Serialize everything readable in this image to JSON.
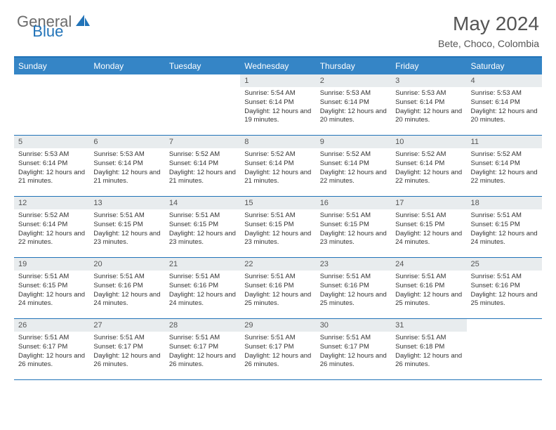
{
  "logo": {
    "general": "General",
    "blue": "Blue"
  },
  "title": {
    "month_year": "May 2024",
    "location": "Bete, Choco, Colombia"
  },
  "styling": {
    "header_bg": "#3585c6",
    "accent_border": "#2173b8",
    "daynum_bg": "#e8ecee",
    "text_color": "#555555",
    "body_text": "#333333",
    "logo_gray": "#6b6b6b",
    "logo_blue": "#2173b8",
    "month_fontsize": 28,
    "location_fontsize": 14,
    "weekday_fontsize": 12,
    "daynum_fontsize": 11,
    "content_fontsize": 9.5
  },
  "weekdays": [
    "Sunday",
    "Monday",
    "Tuesday",
    "Wednesday",
    "Thursday",
    "Friday",
    "Saturday"
  ],
  "weeks": [
    [
      {
        "n": "",
        "sr": "",
        "ss": "",
        "dl": ""
      },
      {
        "n": "",
        "sr": "",
        "ss": "",
        "dl": ""
      },
      {
        "n": "",
        "sr": "",
        "ss": "",
        "dl": ""
      },
      {
        "n": "1",
        "sr": "Sunrise: 5:54 AM",
        "ss": "Sunset: 6:14 PM",
        "dl": "Daylight: 12 hours and 19 minutes."
      },
      {
        "n": "2",
        "sr": "Sunrise: 5:53 AM",
        "ss": "Sunset: 6:14 PM",
        "dl": "Daylight: 12 hours and 20 minutes."
      },
      {
        "n": "3",
        "sr": "Sunrise: 5:53 AM",
        "ss": "Sunset: 6:14 PM",
        "dl": "Daylight: 12 hours and 20 minutes."
      },
      {
        "n": "4",
        "sr": "Sunrise: 5:53 AM",
        "ss": "Sunset: 6:14 PM",
        "dl": "Daylight: 12 hours and 20 minutes."
      }
    ],
    [
      {
        "n": "5",
        "sr": "Sunrise: 5:53 AM",
        "ss": "Sunset: 6:14 PM",
        "dl": "Daylight: 12 hours and 21 minutes."
      },
      {
        "n": "6",
        "sr": "Sunrise: 5:53 AM",
        "ss": "Sunset: 6:14 PM",
        "dl": "Daylight: 12 hours and 21 minutes."
      },
      {
        "n": "7",
        "sr": "Sunrise: 5:52 AM",
        "ss": "Sunset: 6:14 PM",
        "dl": "Daylight: 12 hours and 21 minutes."
      },
      {
        "n": "8",
        "sr": "Sunrise: 5:52 AM",
        "ss": "Sunset: 6:14 PM",
        "dl": "Daylight: 12 hours and 21 minutes."
      },
      {
        "n": "9",
        "sr": "Sunrise: 5:52 AM",
        "ss": "Sunset: 6:14 PM",
        "dl": "Daylight: 12 hours and 22 minutes."
      },
      {
        "n": "10",
        "sr": "Sunrise: 5:52 AM",
        "ss": "Sunset: 6:14 PM",
        "dl": "Daylight: 12 hours and 22 minutes."
      },
      {
        "n": "11",
        "sr": "Sunrise: 5:52 AM",
        "ss": "Sunset: 6:14 PM",
        "dl": "Daylight: 12 hours and 22 minutes."
      }
    ],
    [
      {
        "n": "12",
        "sr": "Sunrise: 5:52 AM",
        "ss": "Sunset: 6:14 PM",
        "dl": "Daylight: 12 hours and 22 minutes."
      },
      {
        "n": "13",
        "sr": "Sunrise: 5:51 AM",
        "ss": "Sunset: 6:15 PM",
        "dl": "Daylight: 12 hours and 23 minutes."
      },
      {
        "n": "14",
        "sr": "Sunrise: 5:51 AM",
        "ss": "Sunset: 6:15 PM",
        "dl": "Daylight: 12 hours and 23 minutes."
      },
      {
        "n": "15",
        "sr": "Sunrise: 5:51 AM",
        "ss": "Sunset: 6:15 PM",
        "dl": "Daylight: 12 hours and 23 minutes."
      },
      {
        "n": "16",
        "sr": "Sunrise: 5:51 AM",
        "ss": "Sunset: 6:15 PM",
        "dl": "Daylight: 12 hours and 23 minutes."
      },
      {
        "n": "17",
        "sr": "Sunrise: 5:51 AM",
        "ss": "Sunset: 6:15 PM",
        "dl": "Daylight: 12 hours and 24 minutes."
      },
      {
        "n": "18",
        "sr": "Sunrise: 5:51 AM",
        "ss": "Sunset: 6:15 PM",
        "dl": "Daylight: 12 hours and 24 minutes."
      }
    ],
    [
      {
        "n": "19",
        "sr": "Sunrise: 5:51 AM",
        "ss": "Sunset: 6:15 PM",
        "dl": "Daylight: 12 hours and 24 minutes."
      },
      {
        "n": "20",
        "sr": "Sunrise: 5:51 AM",
        "ss": "Sunset: 6:16 PM",
        "dl": "Daylight: 12 hours and 24 minutes."
      },
      {
        "n": "21",
        "sr": "Sunrise: 5:51 AM",
        "ss": "Sunset: 6:16 PM",
        "dl": "Daylight: 12 hours and 24 minutes."
      },
      {
        "n": "22",
        "sr": "Sunrise: 5:51 AM",
        "ss": "Sunset: 6:16 PM",
        "dl": "Daylight: 12 hours and 25 minutes."
      },
      {
        "n": "23",
        "sr": "Sunrise: 5:51 AM",
        "ss": "Sunset: 6:16 PM",
        "dl": "Daylight: 12 hours and 25 minutes."
      },
      {
        "n": "24",
        "sr": "Sunrise: 5:51 AM",
        "ss": "Sunset: 6:16 PM",
        "dl": "Daylight: 12 hours and 25 minutes."
      },
      {
        "n": "25",
        "sr": "Sunrise: 5:51 AM",
        "ss": "Sunset: 6:16 PM",
        "dl": "Daylight: 12 hours and 25 minutes."
      }
    ],
    [
      {
        "n": "26",
        "sr": "Sunrise: 5:51 AM",
        "ss": "Sunset: 6:17 PM",
        "dl": "Daylight: 12 hours and 26 minutes."
      },
      {
        "n": "27",
        "sr": "Sunrise: 5:51 AM",
        "ss": "Sunset: 6:17 PM",
        "dl": "Daylight: 12 hours and 26 minutes."
      },
      {
        "n": "28",
        "sr": "Sunrise: 5:51 AM",
        "ss": "Sunset: 6:17 PM",
        "dl": "Daylight: 12 hours and 26 minutes."
      },
      {
        "n": "29",
        "sr": "Sunrise: 5:51 AM",
        "ss": "Sunset: 6:17 PM",
        "dl": "Daylight: 12 hours and 26 minutes."
      },
      {
        "n": "30",
        "sr": "Sunrise: 5:51 AM",
        "ss": "Sunset: 6:17 PM",
        "dl": "Daylight: 12 hours and 26 minutes."
      },
      {
        "n": "31",
        "sr": "Sunrise: 5:51 AM",
        "ss": "Sunset: 6:18 PM",
        "dl": "Daylight: 12 hours and 26 minutes."
      },
      {
        "n": "",
        "sr": "",
        "ss": "",
        "dl": ""
      }
    ]
  ]
}
